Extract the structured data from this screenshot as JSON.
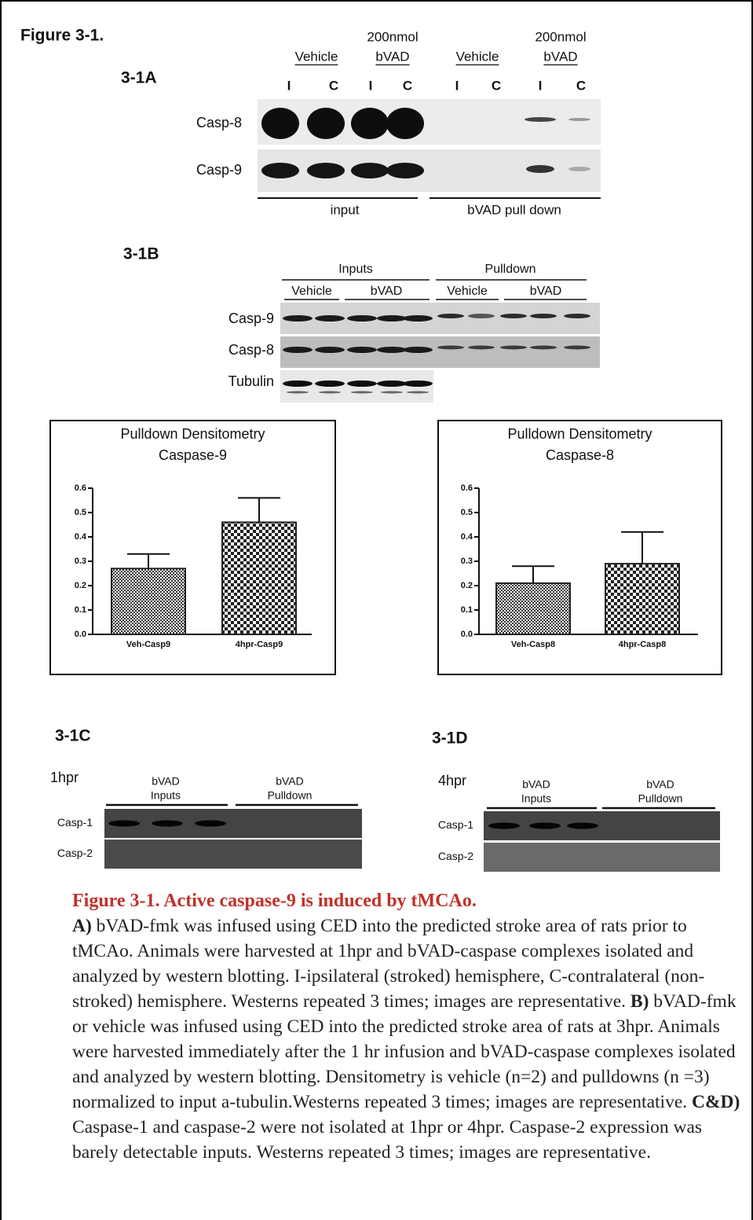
{
  "figure_label": "Figure 3-1.",
  "panel_a": {
    "label": "3-1A",
    "groups": [
      [
        "Vehicle"
      ],
      [
        "200nmol",
        "bVAD"
      ],
      [
        "Vehicle"
      ],
      [
        "200nmol",
        "bVAD"
      ]
    ],
    "lanes": [
      "I",
      "C",
      "I",
      "C",
      "I",
      "C",
      "I",
      "C"
    ],
    "rows": [
      "Casp-8",
      "Casp-9"
    ],
    "sections": [
      "input",
      "bVAD pull down"
    ]
  },
  "panel_b": {
    "label": "3-1B",
    "sections": [
      "Inputs",
      "Pulldown"
    ],
    "groups": [
      "Vehicle",
      "bVAD",
      "Vehicle",
      "bVAD"
    ],
    "rows": [
      "Casp-9",
      "Casp-8",
      "Tubulin"
    ]
  },
  "chart_data": [
    {
      "type": "bar",
      "title": "Pulldown Densitometry",
      "subtitle": "Caspase-9",
      "categories": [
        "Veh-Casp9",
        "4hpr-Casp9"
      ],
      "values": [
        0.27,
        0.46
      ],
      "errors": [
        0.06,
        0.1
      ],
      "ylim": [
        0,
        0.6
      ],
      "yticks": [
        {
          "value": 0,
          "label": "0.0"
        },
        0.1,
        0.2,
        0.3,
        0.4,
        0.5,
        0.6
      ],
      "color": "#222222"
    },
    {
      "type": "bar",
      "title": "Pulldown Densitometry",
      "subtitle": "Caspase-8",
      "categories": [
        "Veh-Casp8",
        "4hpr-Casp8"
      ],
      "values": [
        0.21,
        0.29
      ],
      "errors": [
        0.07,
        0.13
      ],
      "ylim": [
        0,
        0.6
      ],
      "yticks": [
        {
          "value": 0,
          "label": "0.0"
        },
        0.1,
        0.2,
        0.3,
        0.4,
        0.5,
        0.6
      ],
      "color": "#222222"
    }
  ],
  "panel_c": {
    "label": "3-1C",
    "time": "1hpr",
    "sections": [
      [
        "bVAD",
        "Inputs"
      ],
      [
        "bVAD",
        "Pulldown"
      ]
    ],
    "rows": [
      "Casp-1",
      "Casp-2"
    ]
  },
  "panel_d": {
    "label": "3-1D",
    "time": "4hpr",
    "sections": [
      [
        "bVAD",
        "Inputs"
      ],
      [
        "bVAD",
        "Pulldown"
      ]
    ],
    "rows": [
      "Casp-1",
      "Casp-2"
    ]
  },
  "caption": {
    "title": "Figure 3-1. Active caspase-9 is induced by tMCAo.",
    "parts": [
      {
        "label": "A)",
        "text": "bVAD-fmk was infused using CED into the predicted stroke area of rats prior to tMCAo.  Animals were harvested at 1hpr and bVAD-caspase complexes isolated and analyzed by western blotting. I-ipsilateral (stroked) hemisphere, C-contralateral (non-stroked) hemisphere. Westerns repeated 3 times; images are representative."
      },
      {
        "label": "B)",
        "text": "bVAD-fmk or vehicle was infused using CED into the predicted stroke area of rats at 3hpr.  Animals were harvested immediately after the 1 hr infusion and bVAD-caspase complexes isolated and analyzed by western blotting. Densitometry is vehicle (n=2) and pulldowns (n =3) normalized to input a-tubulin.Westerns repeated 3 times; images are representative."
      },
      {
        "label": "C&D)",
        "text": "Caspase-1 and caspase-2 were not isolated at 1hpr or 4hpr. Caspase-2 expression was barely detectable inputs. Westerns repeated 3 times; images are representative."
      }
    ]
  }
}
